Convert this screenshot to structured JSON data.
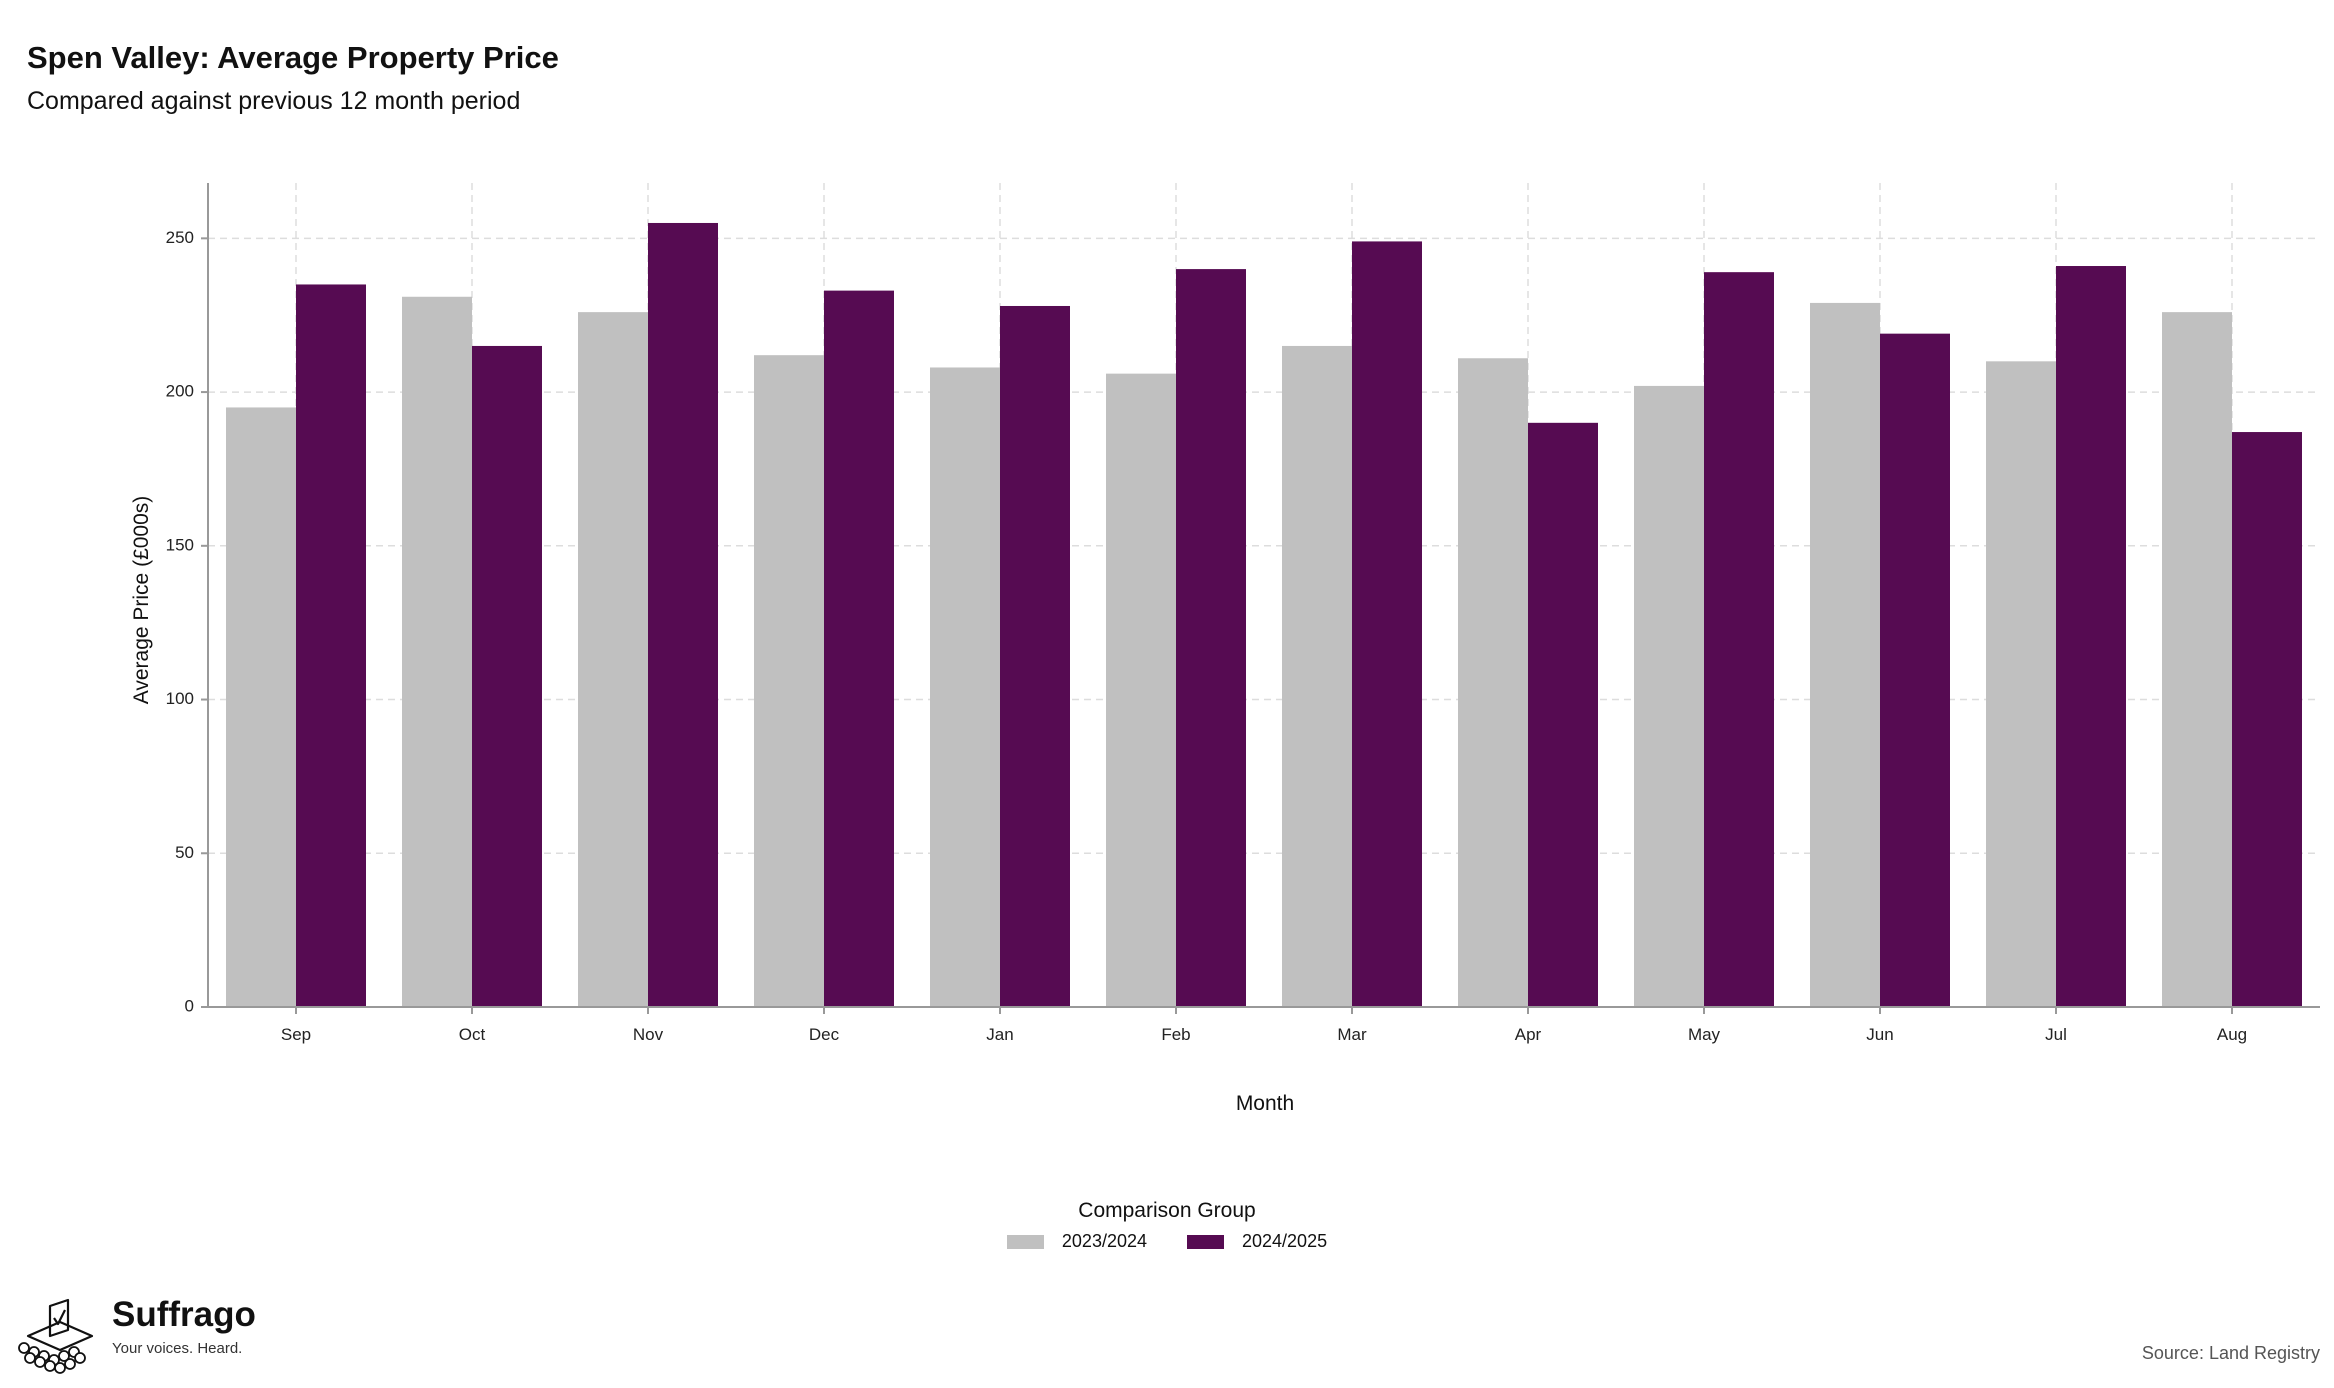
{
  "header": {
    "title": "Spen Valley: Average Property Price",
    "subtitle": "Compared against previous 12 month period"
  },
  "legend": {
    "title": "Comparison Group"
  },
  "branding": {
    "name": "Suffrago",
    "tagline": "Your voices. Heard.",
    "logo_icon": "ballot-box-icon"
  },
  "source": "Source: Land Registry",
  "colors": {
    "series_2023_2024": "#c0c0c0",
    "series_2024_2025": "#560b52",
    "grid": "#dddddd",
    "axis": "#999999"
  },
  "chart_data": {
    "type": "bar",
    "categories": [
      "Sep",
      "Oct",
      "Nov",
      "Dec",
      "Jan",
      "Feb",
      "Mar",
      "Apr",
      "May",
      "Jun",
      "Jul",
      "Aug"
    ],
    "series": [
      {
        "name": "2023/2024",
        "values": [
          195,
          231,
          226,
          212,
          208,
          206,
          215,
          211,
          202,
          229,
          210,
          226
        ]
      },
      {
        "name": "2024/2025",
        "values": [
          235,
          215,
          255,
          233,
          228,
          240,
          249,
          190,
          239,
          219,
          241,
          187
        ]
      }
    ],
    "xlabel": "Month",
    "ylabel": "Average Price (£000s)",
    "ylim": [
      0,
      268
    ],
    "yticks": [
      0,
      50,
      100,
      150,
      200,
      250
    ],
    "grid": true,
    "legend_position": "bottom-center"
  }
}
